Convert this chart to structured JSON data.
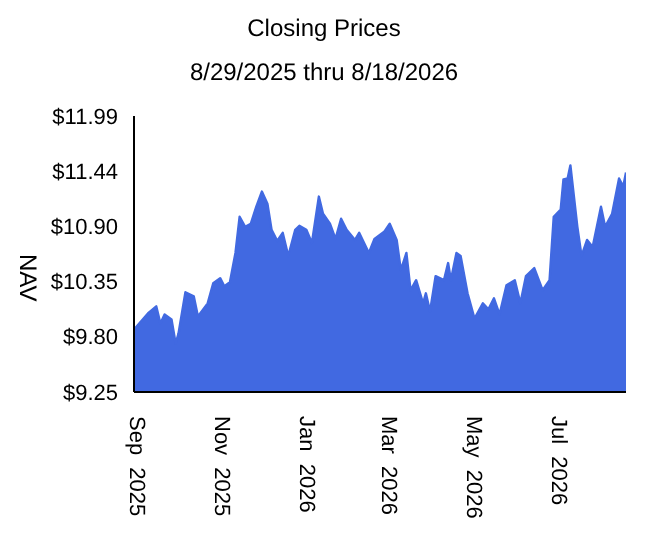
{
  "chart_data": {
    "type": "area",
    "title": "Closing Prices",
    "subtitle": "8/29/2025 thru 8/18/2026",
    "ylabel": "NAV",
    "x": [
      "2025-08-29",
      "2025-09-08",
      "2025-09-14",
      "2025-09-17",
      "2025-09-20",
      "2025-09-25",
      "2025-09-28",
      "2025-09-30",
      "2025-10-05",
      "2025-10-11",
      "2025-10-14",
      "2025-10-21",
      "2025-10-25",
      "2025-10-30",
      "2025-11-02",
      "2025-11-06",
      "2025-11-10",
      "2025-11-13",
      "2025-11-17",
      "2025-11-21",
      "2025-11-25",
      "2025-11-29",
      "2025-12-03",
      "2025-12-06",
      "2025-12-10",
      "2025-12-14",
      "2025-12-18",
      "2025-12-23",
      "2025-12-26",
      "2025-12-31",
      "2026-01-04",
      "2026-01-09",
      "2026-01-12",
      "2026-01-17",
      "2026-01-21",
      "2026-01-25",
      "2026-01-29",
      "2026-02-04",
      "2026-02-07",
      "2026-02-14",
      "2026-02-18",
      "2026-02-25",
      "2026-03-01",
      "2026-03-06",
      "2026-03-09",
      "2026-03-13",
      "2026-03-16",
      "2026-03-20",
      "2026-03-25",
      "2026-03-27",
      "2026-03-30",
      "2026-04-03",
      "2026-04-09",
      "2026-04-12",
      "2026-04-14",
      "2026-04-18",
      "2026-04-21",
      "2026-04-26",
      "2026-05-01",
      "2026-05-07",
      "2026-05-11",
      "2026-05-15",
      "2026-05-19",
      "2026-05-24",
      "2026-05-30",
      "2026-06-03",
      "2026-06-07",
      "2026-06-13",
      "2026-06-19",
      "2026-06-24",
      "2026-06-27",
      "2026-07-02",
      "2026-07-04",
      "2026-07-07",
      "2026-07-09",
      "2026-07-14",
      "2026-07-17",
      "2026-07-21",
      "2026-07-25",
      "2026-07-31",
      "2026-08-03",
      "2026-08-08",
      "2026-08-13",
      "2026-08-16",
      "2026-08-18"
    ],
    "series": [
      {
        "color": "#4169e1",
        "values": [
          9.87,
          10.03,
          10.1,
          9.93,
          10.02,
          9.97,
          9.73,
          9.83,
          10.24,
          10.2,
          10.0,
          10.13,
          10.33,
          10.38,
          10.3,
          10.34,
          10.63,
          10.99,
          10.89,
          10.92,
          11.09,
          11.24,
          11.12,
          10.86,
          10.75,
          10.83,
          10.6,
          10.86,
          10.9,
          10.86,
          10.73,
          11.19,
          11.02,
          10.92,
          10.77,
          10.97,
          10.86,
          10.76,
          10.83,
          10.63,
          10.77,
          10.84,
          10.92,
          10.76,
          10.46,
          10.63,
          10.26,
          10.36,
          10.13,
          10.23,
          10.05,
          10.4,
          10.36,
          10.53,
          10.36,
          10.63,
          10.6,
          10.23,
          9.98,
          10.13,
          10.07,
          10.18,
          10.02,
          10.31,
          10.36,
          10.13,
          10.4,
          10.48,
          10.26,
          10.36,
          10.99,
          11.06,
          11.36,
          11.37,
          11.5,
          10.89,
          10.6,
          10.76,
          10.69,
          11.09,
          10.89,
          11.02,
          11.37,
          11.29,
          11.43
        ]
      }
    ],
    "xlim": [
      "2025-08-29",
      "2026-08-18"
    ],
    "xticks": [
      {
        "value": "2025-09-01",
        "label": "Sep  2025"
      },
      {
        "value": "2025-11-01",
        "label": "Nov  2025"
      },
      {
        "value": "2026-01-01",
        "label": "Jan  2026"
      },
      {
        "value": "2026-03-01",
        "label": "Mar  2026"
      },
      {
        "value": "2026-05-01",
        "label": "May  2026"
      },
      {
        "value": "2026-07-01",
        "label": "Jul  2026"
      }
    ],
    "ylim": [
      9.25,
      11.99
    ],
    "yticks": [
      {
        "value": 9.25,
        "label": "$9.25"
      },
      {
        "value": 9.8,
        "label": "$9.80"
      },
      {
        "value": 10.35,
        "label": "$10.35"
      },
      {
        "value": 10.9,
        "label": "$10.90"
      },
      {
        "value": 11.44,
        "label": "$11.44"
      },
      {
        "value": 11.99,
        "label": "$11.99"
      }
    ],
    "grid": false,
    "legend": false
  }
}
